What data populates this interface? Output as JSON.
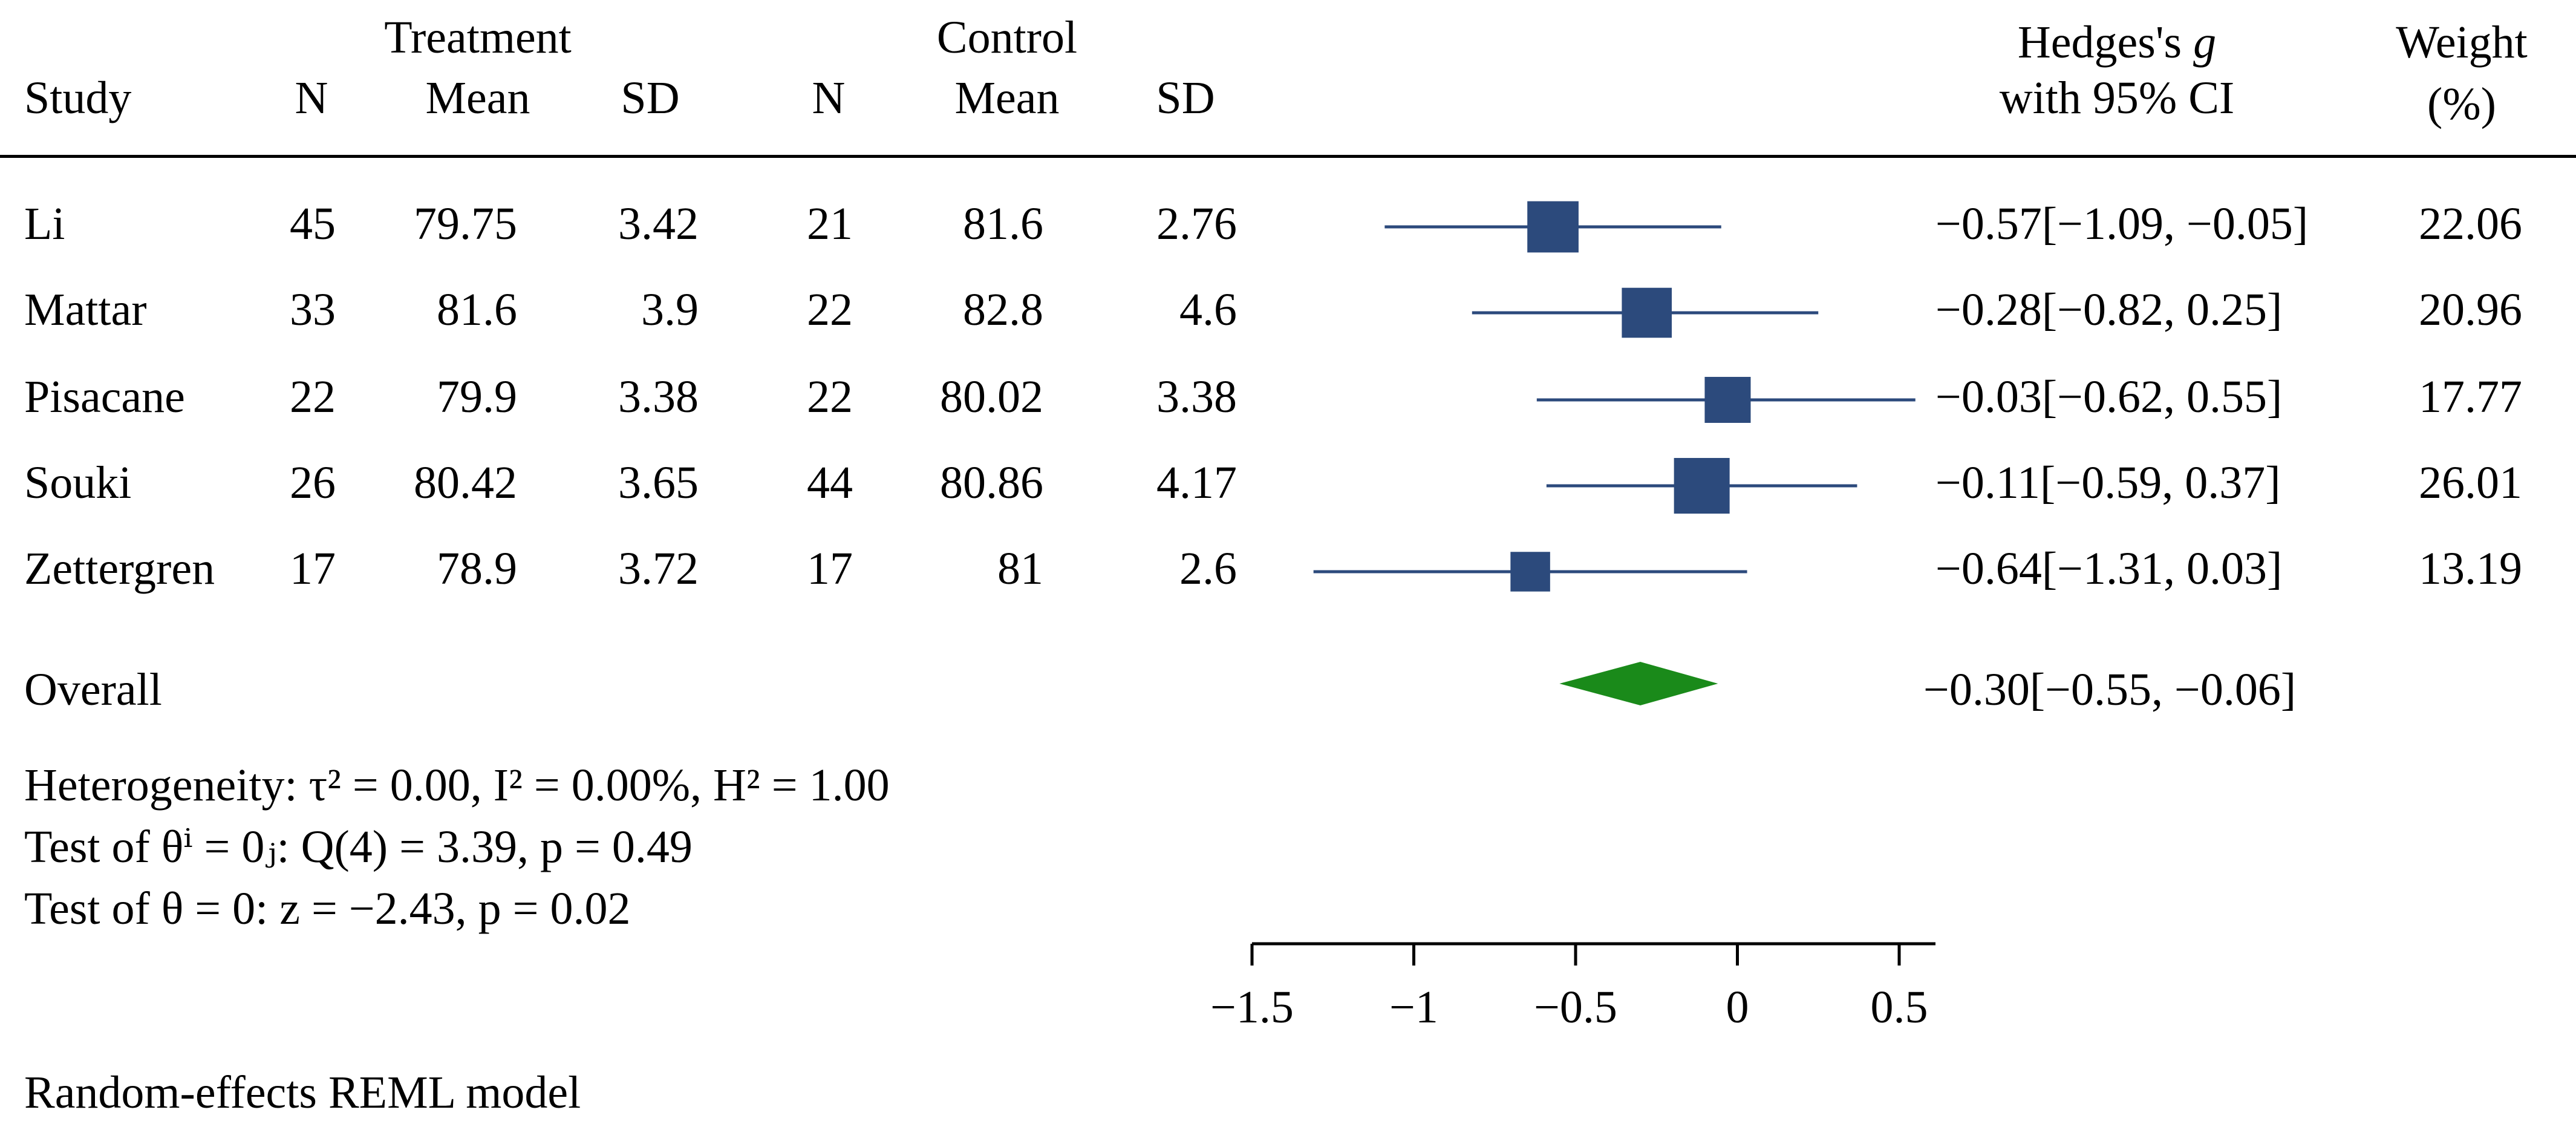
{
  "headers": {
    "study": "Study",
    "treatment": "Treatment",
    "control": "Control",
    "n": "N",
    "mean": "Mean",
    "sd": "SD",
    "effect_line1": "Hedges's g",
    "effect_line2": "with 95% CI",
    "weight_line1": "Weight",
    "weight_line2": "(%)"
  },
  "stats": {
    "heterogeneity": "Heterogeneity: τ² = 0.00, I² = 0.00%, H² = 1.00",
    "test_thetai": "Test of θⁱ = 0ⱼ: Q(4) = 3.39, p = 0.49",
    "test_theta": "Test of θ = 0: z = −2.43, p = 0.02"
  },
  "model_note": "Random-effects REML model",
  "chart_data": {
    "type": "forest",
    "xlim": [
      -1.5,
      0.5
    ],
    "x_ticks": [
      -1.5,
      -1,
      -0.5,
      0,
      0.5
    ],
    "x_tick_labels": [
      "−1.5",
      "−1",
      "−0.5",
      "0",
      "0.5"
    ],
    "marker_color": "#2c4a7c",
    "overall_color": "#1a8a1a",
    "studies": [
      {
        "study": "Li",
        "t_n": "45",
        "t_mean": "79.75",
        "t_sd": "3.42",
        "c_n": "21",
        "c_mean": "81.6",
        "c_sd": "2.76",
        "g": -0.57,
        "lo": -1.09,
        "hi": -0.05,
        "ci_text": "−0.57[−1.09, −0.05]",
        "weight": 22.06,
        "weight_text": "22.06"
      },
      {
        "study": "Mattar",
        "t_n": "33",
        "t_mean": "81.6",
        "t_sd": "3.9",
        "c_n": "22",
        "c_mean": "82.8",
        "c_sd": "4.6",
        "g": -0.28,
        "lo": -0.82,
        "hi": 0.25,
        "ci_text": "−0.28[−0.82,  0.25]",
        "weight": 20.96,
        "weight_text": "20.96"
      },
      {
        "study": "Pisacane",
        "t_n": "22",
        "t_mean": "79.9",
        "t_sd": "3.38",
        "c_n": "22",
        "c_mean": "80.02",
        "c_sd": "3.38",
        "g": -0.03,
        "lo": -0.62,
        "hi": 0.55,
        "ci_text": "−0.03[−0.62,  0.55]",
        "weight": 17.77,
        "weight_text": "17.77"
      },
      {
        "study": "Souki",
        "t_n": "26",
        "t_mean": "80.42",
        "t_sd": "3.65",
        "c_n": "44",
        "c_mean": "80.86",
        "c_sd": "4.17",
        "g": -0.11,
        "lo": -0.59,
        "hi": 0.37,
        "ci_text": "−0.11[−0.59,  0.37]",
        "weight": 26.01,
        "weight_text": "26.01"
      },
      {
        "study": "Zettergren",
        "t_n": "17",
        "t_mean": "78.9",
        "t_sd": "3.72",
        "c_n": "17",
        "c_mean": "81",
        "c_sd": "2.6",
        "g": -0.64,
        "lo": -1.31,
        "hi": 0.03,
        "ci_text": "−0.64[−1.31,  0.03]",
        "weight": 13.19,
        "weight_text": "13.19"
      }
    ],
    "overall": {
      "label": "Overall",
      "g": -0.3,
      "lo": -0.55,
      "hi": -0.06,
      "ci_text": "−0.30[−0.55, −0.06]"
    }
  }
}
